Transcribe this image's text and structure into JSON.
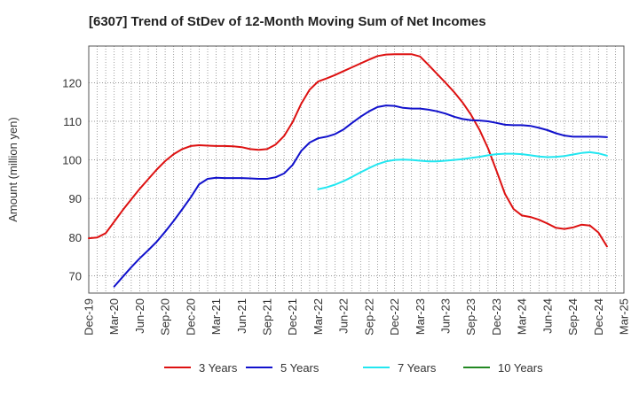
{
  "chart_data": {
    "type": "line",
    "title": "[6307]  Trend of StDev of 12-Month Moving Sum of Net Incomes",
    "ylabel": "Amount (million yen)",
    "xlabel": "",
    "ylim": [
      65.5,
      129.5
    ],
    "yticks": [
      70,
      80,
      90,
      100,
      110,
      120
    ],
    "x_unit": "month",
    "x_start": "Dec-19",
    "x_end": "Mar-25",
    "x_tick_labels": [
      "Dec-19",
      "Mar-20",
      "Jun-20",
      "Sep-20",
      "Dec-20",
      "Mar-21",
      "Jun-21",
      "Sep-21",
      "Dec-21",
      "Mar-22",
      "Jun-22",
      "Sep-22",
      "Dec-22",
      "Mar-23",
      "Jun-23",
      "Sep-23",
      "Dec-23",
      "Mar-24",
      "Jun-24",
      "Sep-24",
      "Dec-24",
      "Mar-25"
    ],
    "grid": true,
    "legend_position": "bottom",
    "series": [
      {
        "name": "3 Years",
        "color": "#dd1111",
        "points": [
          [
            "Dec-19",
            79.7
          ],
          [
            "Jan-20",
            79.9
          ],
          [
            "Feb-20",
            81.0
          ],
          [
            "Mar-20",
            84.0
          ],
          [
            "Apr-20",
            87.0
          ],
          [
            "May-20",
            89.8
          ],
          [
            "Jun-20",
            92.5
          ],
          [
            "Jul-20",
            95.0
          ],
          [
            "Aug-20",
            97.5
          ],
          [
            "Sep-20",
            99.7
          ],
          [
            "Oct-20",
            101.5
          ],
          [
            "Nov-20",
            102.8
          ],
          [
            "Dec-20",
            103.6
          ],
          [
            "Jan-21",
            103.8
          ],
          [
            "Feb-21",
            103.7
          ],
          [
            "Mar-21",
            103.6
          ],
          [
            "Apr-21",
            103.6
          ],
          [
            "May-21",
            103.5
          ],
          [
            "Jun-21",
            103.3
          ],
          [
            "Jul-21",
            102.8
          ],
          [
            "Aug-21",
            102.6
          ],
          [
            "Sep-21",
            102.8
          ],
          [
            "Oct-21",
            104.0
          ],
          [
            "Nov-21",
            106.2
          ],
          [
            "Dec-21",
            109.8
          ],
          [
            "Jan-22",
            114.5
          ],
          [
            "Feb-22",
            118.2
          ],
          [
            "Mar-22",
            120.3
          ],
          [
            "Apr-22",
            121.1
          ],
          [
            "May-22",
            122.0
          ],
          [
            "Jun-22",
            123.0
          ],
          [
            "Jul-22",
            124.0
          ],
          [
            "Aug-22",
            125.0
          ],
          [
            "Sep-22",
            126.0
          ],
          [
            "Oct-22",
            126.9
          ],
          [
            "Nov-22",
            127.3
          ],
          [
            "Dec-22",
            127.4
          ],
          [
            "Jan-23",
            127.4
          ],
          [
            "Feb-23",
            127.4
          ],
          [
            "Mar-23",
            126.8
          ],
          [
            "Apr-23",
            124.6
          ],
          [
            "May-23",
            122.3
          ],
          [
            "Jun-23",
            120.0
          ],
          [
            "Jul-23",
            117.6
          ],
          [
            "Aug-23",
            114.9
          ],
          [
            "Sep-23",
            111.7
          ],
          [
            "Oct-23",
            107.8
          ],
          [
            "Nov-23",
            103.0
          ],
          [
            "Dec-23",
            97.2
          ],
          [
            "Jan-24",
            91.2
          ],
          [
            "Feb-24",
            87.3
          ],
          [
            "Mar-24",
            85.6
          ],
          [
            "Apr-24",
            85.2
          ],
          [
            "May-24",
            84.5
          ],
          [
            "Jun-24",
            83.5
          ],
          [
            "Jul-24",
            82.4
          ],
          [
            "Aug-24",
            82.1
          ],
          [
            "Sep-24",
            82.5
          ],
          [
            "Oct-24",
            83.2
          ],
          [
            "Nov-24",
            83.0
          ],
          [
            "Dec-24",
            81.2
          ],
          [
            "Jan-25",
            77.6
          ]
        ]
      },
      {
        "name": "5 Years",
        "color": "#1111cc",
        "points": [
          [
            "Mar-20",
            67.2
          ],
          [
            "Apr-20",
            69.7
          ],
          [
            "May-20",
            72.2
          ],
          [
            "Jun-20",
            74.5
          ],
          [
            "Jul-20",
            76.6
          ],
          [
            "Aug-20",
            78.8
          ],
          [
            "Sep-20",
            81.4
          ],
          [
            "Oct-20",
            84.2
          ],
          [
            "Nov-20",
            87.2
          ],
          [
            "Dec-20",
            90.3
          ],
          [
            "Jan-21",
            93.7
          ],
          [
            "Feb-21",
            95.1
          ],
          [
            "Mar-21",
            95.4
          ],
          [
            "Apr-21",
            95.3
          ],
          [
            "May-21",
            95.3
          ],
          [
            "Jun-21",
            95.3
          ],
          [
            "Jul-21",
            95.2
          ],
          [
            "Aug-21",
            95.1
          ],
          [
            "Sep-21",
            95.1
          ],
          [
            "Oct-21",
            95.5
          ],
          [
            "Nov-21",
            96.5
          ],
          [
            "Dec-21",
            98.7
          ],
          [
            "Jan-22",
            102.3
          ],
          [
            "Feb-22",
            104.5
          ],
          [
            "Mar-22",
            105.6
          ],
          [
            "Apr-22",
            106.0
          ],
          [
            "May-22",
            106.7
          ],
          [
            "Jun-22",
            107.9
          ],
          [
            "Jul-22",
            109.6
          ],
          [
            "Aug-22",
            111.2
          ],
          [
            "Sep-22",
            112.6
          ],
          [
            "Oct-22",
            113.7
          ],
          [
            "Nov-22",
            114.1
          ],
          [
            "Dec-22",
            114.0
          ],
          [
            "Jan-23",
            113.5
          ],
          [
            "Feb-23",
            113.3
          ],
          [
            "Mar-23",
            113.3
          ],
          [
            "Apr-23",
            113.0
          ],
          [
            "May-23",
            112.6
          ],
          [
            "Jun-23",
            112.0
          ],
          [
            "Jul-23",
            111.2
          ],
          [
            "Aug-23",
            110.6
          ],
          [
            "Sep-23",
            110.3
          ],
          [
            "Oct-23",
            110.2
          ],
          [
            "Nov-23",
            110.0
          ],
          [
            "Dec-23",
            109.6
          ],
          [
            "Jan-24",
            109.1
          ],
          [
            "Feb-24",
            109.0
          ],
          [
            "Mar-24",
            109.0
          ],
          [
            "Apr-24",
            108.8
          ],
          [
            "May-24",
            108.3
          ],
          [
            "Jun-24",
            107.7
          ],
          [
            "Jul-24",
            106.9
          ],
          [
            "Aug-24",
            106.3
          ],
          [
            "Sep-24",
            106.0
          ],
          [
            "Oct-24",
            106.0
          ],
          [
            "Nov-24",
            106.0
          ],
          [
            "Dec-24",
            106.0
          ],
          [
            "Jan-25",
            105.9
          ]
        ]
      },
      {
        "name": "7 Years",
        "color": "#22e6f0",
        "points": [
          [
            "Mar-22",
            92.4
          ],
          [
            "Apr-22",
            92.9
          ],
          [
            "May-22",
            93.6
          ],
          [
            "Jun-22",
            94.5
          ],
          [
            "Jul-22",
            95.6
          ],
          [
            "Aug-22",
            96.8
          ],
          [
            "Sep-22",
            97.9
          ],
          [
            "Oct-22",
            98.9
          ],
          [
            "Nov-22",
            99.6
          ],
          [
            "Dec-22",
            100.0
          ],
          [
            "Jan-23",
            100.1
          ],
          [
            "Feb-23",
            100.0
          ],
          [
            "Mar-23",
            99.8
          ],
          [
            "Apr-23",
            99.6
          ],
          [
            "May-23",
            99.6
          ],
          [
            "Jun-23",
            99.8
          ],
          [
            "Jul-23",
            100.0
          ],
          [
            "Aug-23",
            100.2
          ],
          [
            "Sep-23",
            100.5
          ],
          [
            "Oct-23",
            100.8
          ],
          [
            "Nov-23",
            101.2
          ],
          [
            "Dec-23",
            101.5
          ],
          [
            "Jan-24",
            101.6
          ],
          [
            "Feb-24",
            101.6
          ],
          [
            "Mar-24",
            101.5
          ],
          [
            "Apr-24",
            101.2
          ],
          [
            "May-24",
            100.9
          ],
          [
            "Jun-24",
            100.7
          ],
          [
            "Jul-24",
            100.8
          ],
          [
            "Aug-24",
            101.0
          ],
          [
            "Sep-24",
            101.4
          ],
          [
            "Oct-24",
            101.8
          ],
          [
            "Nov-24",
            102.0
          ],
          [
            "Dec-24",
            101.7
          ],
          [
            "Jan-25",
            101.1
          ]
        ]
      },
      {
        "name": "10 Years",
        "color": "#228822",
        "points": []
      }
    ]
  }
}
